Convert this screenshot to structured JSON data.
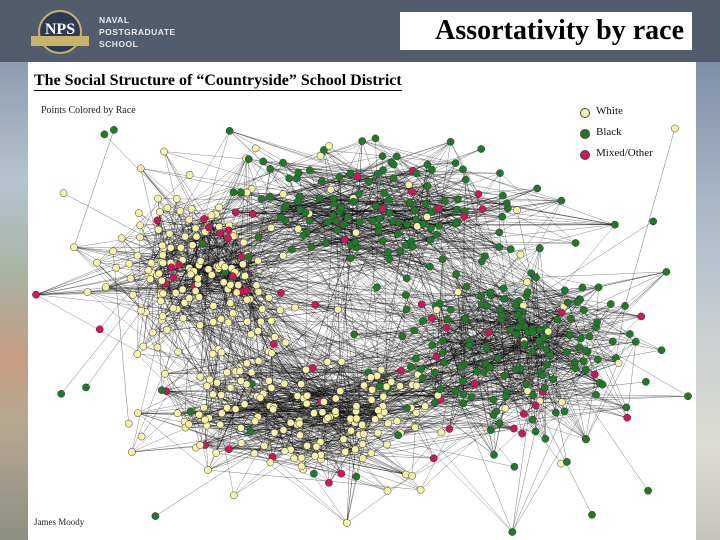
{
  "header": {
    "logo_lines": [
      "NAVAL",
      "POSTGRADUATE",
      "SCHOOL"
    ],
    "seal_text": "NPS",
    "slide_title": "Assortativity by race"
  },
  "figure": {
    "title": "The Social Structure of “Countryside” School District",
    "subtitle": "Points Colored by Race",
    "credit": "James Moody",
    "legend": [
      {
        "label": "White",
        "color": "#f8f2a4"
      },
      {
        "label": "Black",
        "color": "#1e7a28"
      },
      {
        "label": "Mixed/Other",
        "color": "#d0155a"
      }
    ]
  },
  "colors": {
    "white_node": "#f8f2a4",
    "black_node": "#1e7a28",
    "mixed_node": "#d0155a",
    "edge": "#000000",
    "header_bg": "#515c6d"
  }
}
